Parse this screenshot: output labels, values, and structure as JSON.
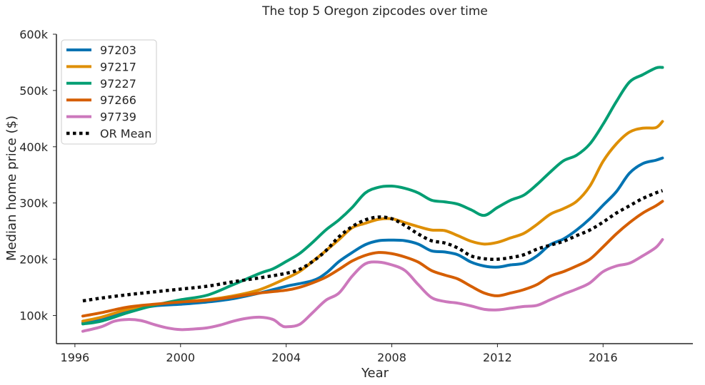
{
  "chart_data": {
    "type": "line",
    "title": "The top 5 Oregon zipcodes over time",
    "xlabel": "Year",
    "ylabel": "Median home price ($)",
    "xlim": [
      1995.3,
      2019.4
    ],
    "ylim": [
      50000,
      600000
    ],
    "x_ticks": [
      1996,
      2000,
      2004,
      2008,
      2012,
      2016
    ],
    "x_tick_labels": [
      "1996",
      "2000",
      "2004",
      "2008",
      "2012",
      "2016"
    ],
    "y_ticks": [
      100000,
      200000,
      300000,
      400000,
      500000,
      600000
    ],
    "y_tick_labels": [
      "100k",
      "200k",
      "300k",
      "400k",
      "500k",
      "600k"
    ],
    "grid": false,
    "legend_position": "top-left",
    "series": [
      {
        "name": "97203",
        "color": "#0173b2",
        "style": "solid",
        "points": [
          [
            1996.3,
            87000
          ],
          [
            1997,
            92000
          ],
          [
            1998,
            108000
          ],
          [
            1999,
            117000
          ],
          [
            2000,
            120000
          ],
          [
            2001,
            124000
          ],
          [
            2002,
            130000
          ],
          [
            2003,
            140000
          ],
          [
            2004,
            152000
          ],
          [
            2005,
            162000
          ],
          [
            2005.5,
            175000
          ],
          [
            2006,
            196000
          ],
          [
            2006.5,
            212000
          ],
          [
            2007,
            226000
          ],
          [
            2007.5,
            233000
          ],
          [
            2008,
            234000
          ],
          [
            2008.5,
            233000
          ],
          [
            2009,
            227000
          ],
          [
            2009.5,
            215000
          ],
          [
            2010,
            213000
          ],
          [
            2010.5,
            208000
          ],
          [
            2011,
            195000
          ],
          [
            2011.5,
            188000
          ],
          [
            2012,
            186000
          ],
          [
            2012.5,
            190000
          ],
          [
            2013,
            193000
          ],
          [
            2013.5,
            206000
          ],
          [
            2014,
            226000
          ],
          [
            2014.5,
            236000
          ],
          [
            2015,
            252000
          ],
          [
            2015.5,
            272000
          ],
          [
            2016,
            296000
          ],
          [
            2016.5,
            320000
          ],
          [
            2017,
            353000
          ],
          [
            2017.5,
            370000
          ],
          [
            2018,
            376000
          ],
          [
            2018.25,
            380000
          ]
        ]
      },
      {
        "name": "97217",
        "color": "#de8f05",
        "style": "solid",
        "points": [
          [
            1996.3,
            90000
          ],
          [
            1997,
            97000
          ],
          [
            1998,
            111000
          ],
          [
            1999,
            119000
          ],
          [
            2000,
            125000
          ],
          [
            2001,
            128000
          ],
          [
            2002,
            135000
          ],
          [
            2003,
            146000
          ],
          [
            2004,
            166000
          ],
          [
            2004.5,
            178000
          ],
          [
            2005,
            196000
          ],
          [
            2005.5,
            215000
          ],
          [
            2006,
            235000
          ],
          [
            2006.5,
            256000
          ],
          [
            2007,
            264000
          ],
          [
            2007.5,
            271000
          ],
          [
            2008,
            272000
          ],
          [
            2008.5,
            265000
          ],
          [
            2009,
            258000
          ],
          [
            2009.5,
            252000
          ],
          [
            2010,
            251000
          ],
          [
            2010.5,
            242000
          ],
          [
            2011,
            232000
          ],
          [
            2011.5,
            227000
          ],
          [
            2012,
            230000
          ],
          [
            2012.5,
            238000
          ],
          [
            2013,
            246000
          ],
          [
            2013.5,
            262000
          ],
          [
            2014,
            280000
          ],
          [
            2014.5,
            290000
          ],
          [
            2015,
            303000
          ],
          [
            2015.5,
            330000
          ],
          [
            2016,
            374000
          ],
          [
            2016.5,
            405000
          ],
          [
            2017,
            426000
          ],
          [
            2017.5,
            433000
          ],
          [
            2018,
            434000
          ],
          [
            2018.25,
            445000
          ]
        ]
      },
      {
        "name": "97227",
        "color": "#029e73",
        "style": "solid",
        "points": [
          [
            1996.3,
            85000
          ],
          [
            1997,
            90000
          ],
          [
            1998,
            105000
          ],
          [
            1999,
            118000
          ],
          [
            2000,
            128000
          ],
          [
            2001,
            136000
          ],
          [
            2002,
            155000
          ],
          [
            2003,
            175000
          ],
          [
            2003.5,
            183000
          ],
          [
            2004,
            196000
          ],
          [
            2004.5,
            210000
          ],
          [
            2005,
            230000
          ],
          [
            2005.5,
            252000
          ],
          [
            2006,
            270000
          ],
          [
            2006.5,
            292000
          ],
          [
            2007,
            318000
          ],
          [
            2007.5,
            328000
          ],
          [
            2008,
            330000
          ],
          [
            2008.5,
            326000
          ],
          [
            2009,
            318000
          ],
          [
            2009.5,
            305000
          ],
          [
            2010,
            302000
          ],
          [
            2010.5,
            298000
          ],
          [
            2011,
            288000
          ],
          [
            2011.5,
            278000
          ],
          [
            2012,
            292000
          ],
          [
            2012.5,
            305000
          ],
          [
            2013,
            314000
          ],
          [
            2013.5,
            333000
          ],
          [
            2014,
            355000
          ],
          [
            2014.5,
            375000
          ],
          [
            2015,
            385000
          ],
          [
            2015.5,
            405000
          ],
          [
            2016,
            440000
          ],
          [
            2016.5,
            480000
          ],
          [
            2017,
            515000
          ],
          [
            2017.5,
            528000
          ],
          [
            2018,
            540000
          ],
          [
            2018.25,
            541000
          ]
        ]
      },
      {
        "name": "97266",
        "color": "#d55e00",
        "style": "solid",
        "points": [
          [
            1996.3,
            99000
          ],
          [
            1997,
            105000
          ],
          [
            1998,
            115000
          ],
          [
            1999,
            120000
          ],
          [
            2000,
            124000
          ],
          [
            2001,
            127000
          ],
          [
            2002,
            133000
          ],
          [
            2003,
            140000
          ],
          [
            2004,
            145000
          ],
          [
            2004.5,
            150000
          ],
          [
            2005,
            158000
          ],
          [
            2005.5,
            168000
          ],
          [
            2006,
            182000
          ],
          [
            2006.5,
            197000
          ],
          [
            2007,
            207000
          ],
          [
            2007.5,
            212000
          ],
          [
            2008,
            210000
          ],
          [
            2008.5,
            204000
          ],
          [
            2009,
            195000
          ],
          [
            2009.5,
            180000
          ],
          [
            2010,
            172000
          ],
          [
            2010.5,
            165000
          ],
          [
            2011,
            152000
          ],
          [
            2011.5,
            140000
          ],
          [
            2012,
            135000
          ],
          [
            2012.5,
            140000
          ],
          [
            2013,
            146000
          ],
          [
            2013.5,
            155000
          ],
          [
            2014,
            170000
          ],
          [
            2014.5,
            178000
          ],
          [
            2015,
            188000
          ],
          [
            2015.5,
            200000
          ],
          [
            2016,
            222000
          ],
          [
            2016.5,
            245000
          ],
          [
            2017,
            265000
          ],
          [
            2017.5,
            282000
          ],
          [
            2018,
            295000
          ],
          [
            2018.25,
            303000
          ]
        ]
      },
      {
        "name": "97739",
        "color": "#cc78bc",
        "style": "solid",
        "points": [
          [
            1996.3,
            72000
          ],
          [
            1997,
            80000
          ],
          [
            1997.5,
            90000
          ],
          [
            1998,
            93000
          ],
          [
            1998.5,
            91000
          ],
          [
            1999,
            84000
          ],
          [
            1999.5,
            78000
          ],
          [
            2000,
            75000
          ],
          [
            2000.5,
            76000
          ],
          [
            2001,
            78000
          ],
          [
            2001.5,
            83000
          ],
          [
            2002,
            90000
          ],
          [
            2002.5,
            95000
          ],
          [
            2003,
            97000
          ],
          [
            2003.5,
            93000
          ],
          [
            2003.8,
            83000
          ],
          [
            2004,
            80000
          ],
          [
            2004.5,
            84000
          ],
          [
            2005,
            105000
          ],
          [
            2005.5,
            127000
          ],
          [
            2006,
            140000
          ],
          [
            2006.5,
            170000
          ],
          [
            2007,
            192000
          ],
          [
            2007.5,
            195000
          ],
          [
            2008,
            190000
          ],
          [
            2008.5,
            180000
          ],
          [
            2009,
            155000
          ],
          [
            2009.5,
            132000
          ],
          [
            2010,
            125000
          ],
          [
            2010.5,
            122000
          ],
          [
            2011,
            117000
          ],
          [
            2011.5,
            111000
          ],
          [
            2012,
            110000
          ],
          [
            2012.5,
            113000
          ],
          [
            2013,
            116000
          ],
          [
            2013.5,
            118000
          ],
          [
            2014,
            128000
          ],
          [
            2014.5,
            138000
          ],
          [
            2015,
            147000
          ],
          [
            2015.5,
            158000
          ],
          [
            2016,
            178000
          ],
          [
            2016.5,
            188000
          ],
          [
            2017,
            193000
          ],
          [
            2017.5,
            206000
          ],
          [
            2018,
            221000
          ],
          [
            2018.25,
            235000
          ]
        ]
      },
      {
        "name": "OR Mean",
        "color": "#000000",
        "style": "dotted",
        "points": [
          [
            1996.3,
            126000
          ],
          [
            1997,
            131000
          ],
          [
            1998,
            137000
          ],
          [
            1999,
            142000
          ],
          [
            2000,
            147000
          ],
          [
            2001,
            152000
          ],
          [
            2002,
            160000
          ],
          [
            2003,
            167000
          ],
          [
            2004,
            175000
          ],
          [
            2004.5,
            182000
          ],
          [
            2005,
            196000
          ],
          [
            2005.5,
            215000
          ],
          [
            2006,
            240000
          ],
          [
            2006.5,
            258000
          ],
          [
            2007,
            270000
          ],
          [
            2007.5,
            275000
          ],
          [
            2008,
            272000
          ],
          [
            2008.5,
            260000
          ],
          [
            2009,
            245000
          ],
          [
            2009.5,
            233000
          ],
          [
            2010,
            229000
          ],
          [
            2010.5,
            220000
          ],
          [
            2011,
            206000
          ],
          [
            2011.5,
            201000
          ],
          [
            2012,
            200000
          ],
          [
            2012.5,
            203000
          ],
          [
            2013,
            208000
          ],
          [
            2013.5,
            218000
          ],
          [
            2014,
            225000
          ],
          [
            2014.5,
            232000
          ],
          [
            2015,
            242000
          ],
          [
            2015.5,
            252000
          ],
          [
            2016,
            266000
          ],
          [
            2016.5,
            282000
          ],
          [
            2017,
            295000
          ],
          [
            2017.5,
            308000
          ],
          [
            2018,
            318000
          ],
          [
            2018.25,
            322000
          ]
        ]
      }
    ]
  }
}
